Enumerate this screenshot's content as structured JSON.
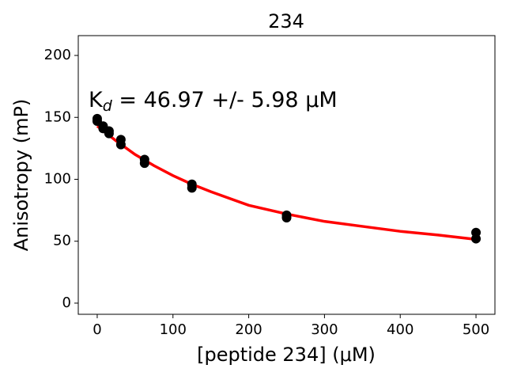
{
  "chart_data": {
    "type": "scatter",
    "title": "234",
    "xlabel": "[peptide 234] (μM)",
    "ylabel": "Anisotropy (mP)",
    "annotation": [
      "K",
      "d",
      " = 46.97 +/- 5.98 μM"
    ],
    "xlim": [
      -25,
      525
    ],
    "ylim": [
      -9,
      216
    ],
    "xticks": [
      0,
      100,
      200,
      300,
      400,
      500
    ],
    "yticks": [
      0,
      50,
      100,
      150,
      200
    ],
    "points": {
      "color": "#000000",
      "x": [
        0,
        0,
        7.8,
        7.8,
        15.6,
        15.6,
        31.25,
        31.25,
        62.5,
        62.5,
        125,
        125,
        250,
        250,
        500,
        500
      ],
      "values": [
        149,
        147,
        143,
        141,
        139,
        137,
        132,
        128,
        116,
        113,
        96,
        93,
        71,
        69,
        57,
        52
      ]
    },
    "fit": {
      "color": "#ff0000",
      "x": [
        0,
        25,
        50,
        75,
        100,
        125,
        150,
        200,
        250,
        300,
        350,
        400,
        450,
        500
      ],
      "values": [
        143,
        131,
        120,
        111,
        103,
        96,
        90,
        79,
        72,
        66,
        62,
        58,
        55,
        51.5
      ]
    }
  }
}
